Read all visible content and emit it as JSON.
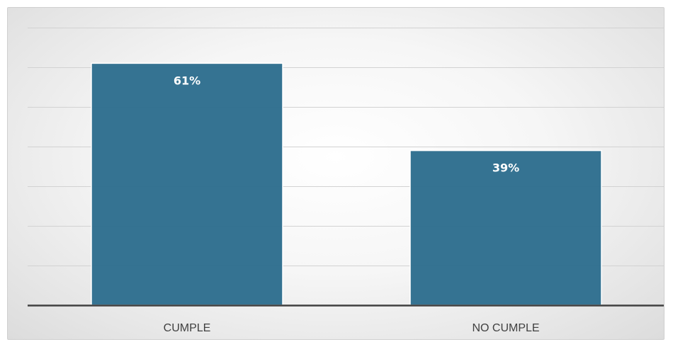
{
  "chart_data": {
    "type": "bar",
    "categories": [
      "CUMPLE",
      "NO CUMPLE"
    ],
    "values": [
      61,
      39
    ],
    "data_labels": [
      "61%",
      "39%"
    ],
    "ylim": [
      0,
      70
    ],
    "grid": true,
    "legend": "none",
    "bar_color": "#2E6E8E",
    "axis_color": "#404040"
  }
}
